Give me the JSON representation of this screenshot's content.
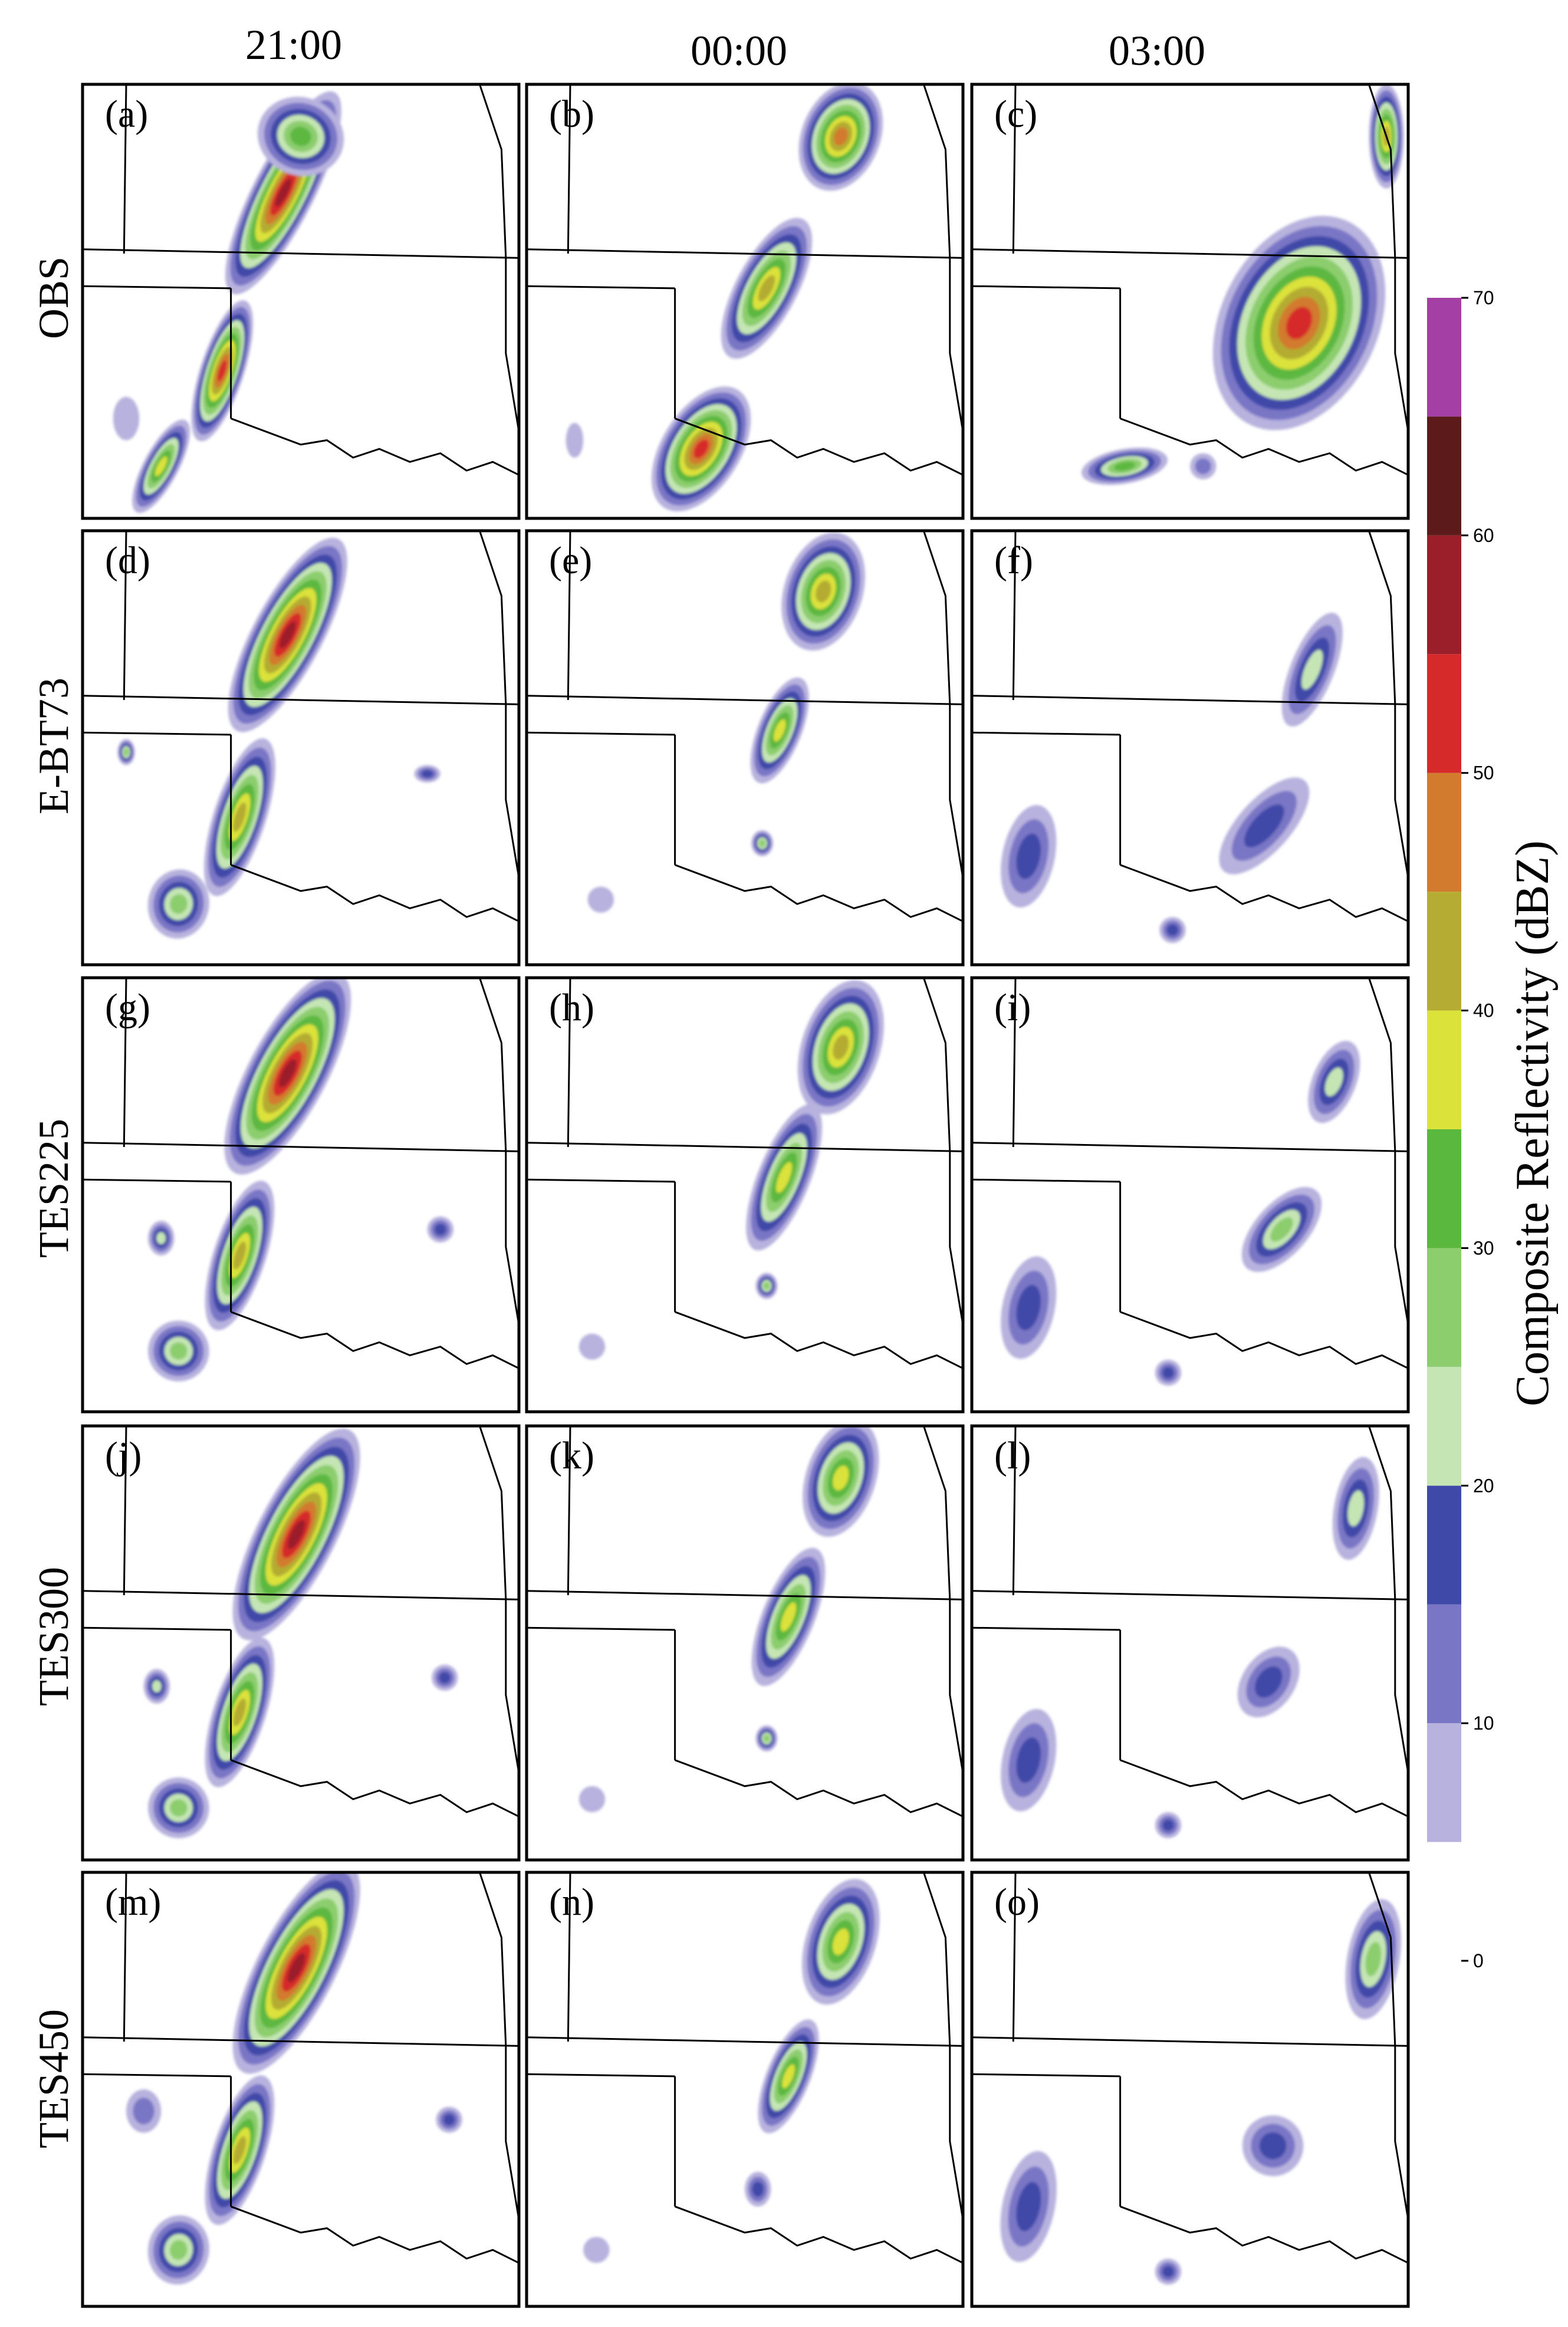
{
  "columns": [
    "21:00",
    "00:00",
    "03:00"
  ],
  "rows": [
    "OBS",
    "E-BT73",
    "TES225",
    "TES300",
    "TES450"
  ],
  "panel_labels": [
    [
      "(a)",
      "(b)",
      "(c)"
    ],
    [
      "(d)",
      "(e)",
      "(f)"
    ],
    [
      "(g)",
      "(h)",
      "(i)"
    ],
    [
      "(j)",
      "(k)",
      "(l)"
    ],
    [
      "(m)",
      "(n)",
      "(o)"
    ]
  ],
  "colorbar": {
    "title": "Composite Reflectivity (dBZ)",
    "ticks": [
      "0",
      "10",
      "20",
      "30",
      "40",
      "50",
      "60",
      "70"
    ],
    "levels": [
      0,
      5,
      10,
      15,
      20,
      25,
      30,
      35,
      40,
      45,
      50,
      55,
      60,
      65,
      70
    ],
    "colors": [
      "#ffffff",
      "#b7b2de",
      "#7a76c6",
      "#3f4aa8",
      "#c5e6b4",
      "#8ccd6e",
      "#5bb83f",
      "#dbe23a",
      "#b4ac33",
      "#d27a2e",
      "#d62a2a",
      "#9b1f2a",
      "#5c1a1a",
      "#a43fa6"
    ]
  },
  "chart_data": {
    "type": "heatmap",
    "variable": "Composite Reflectivity",
    "units": "dBZ",
    "range": [
      0,
      70
    ],
    "interval": 5,
    "times": [
      "21:00",
      "00:00",
      "03:00"
    ],
    "experiments": [
      "OBS",
      "E-BT73",
      "TES225",
      "TES300",
      "TES450"
    ]
  }
}
